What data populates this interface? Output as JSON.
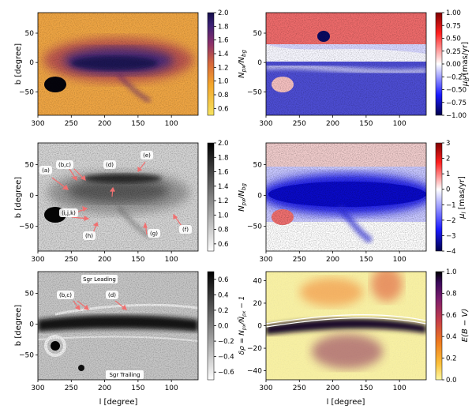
{
  "chart_data": [
    {
      "type": "heatmap",
      "panel": "top-left",
      "xlabel": "",
      "ylabel": "b [degree]",
      "xlim": [
        300,
        60
      ],
      "ylim": [
        -90,
        85
      ],
      "xticks": [
        300,
        250,
        200,
        150,
        100
      ],
      "yticks": [
        50,
        0,
        -50
      ],
      "colormap": "inferno_r",
      "colorbar": {
        "label": "N_px/N_bg",
        "range": [
          0.5,
          2.0
        ],
        "ticks": [
          "2.0",
          "1.8",
          "1.6",
          "1.4",
          "1.2",
          "1.0",
          "0.8",
          "0.6"
        ],
        "values": [
          2.0,
          1.8,
          1.6,
          1.4,
          1.2,
          1.0,
          0.8,
          0.6
        ]
      },
      "annotations": []
    },
    {
      "type": "heatmap",
      "panel": "top-right",
      "xlabel": "",
      "ylabel": "",
      "xlim": [
        300,
        60
      ],
      "ylim": [
        -90,
        85
      ],
      "xticks": [
        300,
        250,
        200,
        150,
        100
      ],
      "yticks": [
        50,
        0,
        -50
      ],
      "colormap": "seismic",
      "colorbar": {
        "label": "μ_b [mas/yr]",
        "range": [
          -1.0,
          1.0
        ],
        "ticks": [
          "1.00",
          "0.75",
          "0.50",
          "0.25",
          "0.00",
          "−0.25",
          "−0.50",
          "−0.75",
          "−1.00"
        ],
        "values": [
          1.0,
          0.75,
          0.5,
          0.25,
          0.0,
          -0.25,
          -0.5,
          -0.75,
          -1.0
        ]
      },
      "annotations": []
    },
    {
      "type": "heatmap",
      "panel": "middle-left",
      "xlabel": "",
      "ylabel": "b [degree]",
      "xlim": [
        300,
        60
      ],
      "ylim": [
        -90,
        85
      ],
      "xticks": [
        300,
        250,
        200,
        150,
        100
      ],
      "yticks": [
        50,
        0,
        -50
      ],
      "colormap": "gray_r",
      "colorbar": {
        "label": "N_px/N_bg",
        "range": [
          0.5,
          2.0
        ],
        "ticks": [
          "2.0",
          "1.8",
          "1.6",
          "1.4",
          "1.2",
          "1.0",
          "0.8",
          "0.6"
        ],
        "values": [
          2.0,
          1.8,
          1.6,
          1.4,
          1.2,
          1.0,
          0.8,
          0.6
        ]
      },
      "annotations": [
        "(a)",
        "(b,c)",
        "(d)",
        "(e)",
        "(i,j,k)",
        "(h)",
        "(g)",
        "(f)"
      ]
    },
    {
      "type": "heatmap",
      "panel": "middle-right",
      "xlabel": "",
      "ylabel": "",
      "xlim": [
        300,
        60
      ],
      "ylim": [
        -90,
        85
      ],
      "xticks": [
        300,
        250,
        200,
        150,
        100
      ],
      "yticks": [
        50,
        0,
        -50
      ],
      "colormap": "seismic",
      "colorbar": {
        "label": "μ_l [mas/yr]",
        "range": [
          -4,
          3
        ],
        "ticks": [
          "3",
          "2",
          "1",
          "0",
          "−1",
          "−2",
          "−3",
          "−4"
        ],
        "values": [
          3,
          2,
          1,
          0,
          -1,
          -2,
          -3,
          -4
        ]
      },
      "annotations": []
    },
    {
      "type": "heatmap",
      "panel": "bottom-left",
      "xlabel": "l [degree]",
      "ylabel": "b [degree]",
      "xlim": [
        300,
        60
      ],
      "ylim": [
        -90,
        85
      ],
      "xticks": [
        300,
        250,
        200,
        150,
        100
      ],
      "yticks": [
        50,
        0,
        -50
      ],
      "colormap": "gray_r",
      "colorbar": {
        "label": "δρ = N_px/N̄_px − 1",
        "range": [
          -0.7,
          0.7
        ],
        "ticks": [
          "0.6",
          "0.4",
          "0.2",
          "0.0",
          "−0.2",
          "−0.4",
          "−0.6"
        ],
        "values": [
          0.6,
          0.4,
          0.2,
          0.0,
          -0.2,
          -0.4,
          -0.6
        ]
      },
      "annotations": [
        "Sgr  Leading",
        "(b,c)",
        "(d)",
        "Sgr  Trailing"
      ]
    },
    {
      "type": "heatmap",
      "panel": "bottom-right",
      "xlabel": "l [degree]",
      "ylabel": "",
      "xlim": [
        300,
        60
      ],
      "ylim": [
        -48,
        48
      ],
      "xticks": [
        300,
        250,
        200,
        150,
        100
      ],
      "yticks": [
        40,
        20,
        0,
        -20,
        -40
      ],
      "colormap": "inferno_r",
      "colorbar": {
        "label": "E(B − V)",
        "range": [
          0.0,
          1.0
        ],
        "ticks": [
          "1.0",
          "0.8",
          "0.6",
          "0.4",
          "0.2",
          "0.0"
        ],
        "values": [
          1.0,
          0.8,
          0.6,
          0.4,
          0.2,
          0.0
        ]
      },
      "annotations": []
    }
  ]
}
